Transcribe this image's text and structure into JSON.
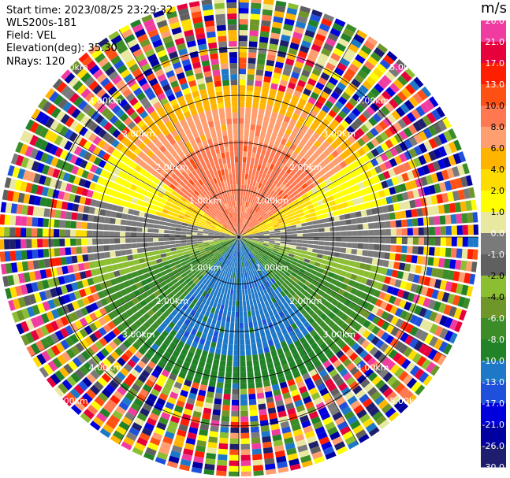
{
  "info": {
    "start_time": "Start time: 2023/08/25 23:29:32",
    "instrument": "WLS200s-181",
    "field": "Field: VEL",
    "elevation": "Elevation(deg): 35.30",
    "nrays": "NRays: 120"
  },
  "colorbar": {
    "unit": "m/s",
    "ticks": [
      "26.0",
      "21.0",
      "17.0",
      "13.0",
      "10.0",
      "8.0",
      "6.0",
      "4.0",
      "2.0",
      "1.0",
      "0.0",
      "-1.0",
      "-2.0",
      "-4.0",
      "-6.0",
      "-8.0",
      "-10.0",
      "-13.0",
      "-17.0",
      "-21.0",
      "-26.0",
      "-30.0"
    ],
    "colors": [
      "#f03ca0",
      "#e6003c",
      "#ff1e00",
      "#ff5014",
      "#ff7850",
      "#ff9e6e",
      "#ffb400",
      "#ffdc00",
      "#ffff00",
      "#e8e8a0",
      "#7a7a7a",
      "#606060",
      "#8cbe32",
      "#6e9628",
      "#3c8c28",
      "#228228",
      "#1e78c8",
      "#1e50dc",
      "#0000dc",
      "#0000a0",
      "#1e1e6e"
    ]
  },
  "ring_labels": [
    "1.00km",
    "2.00km",
    "3.00km",
    "4.00km",
    "5.00km"
  ],
  "rays": 120
}
